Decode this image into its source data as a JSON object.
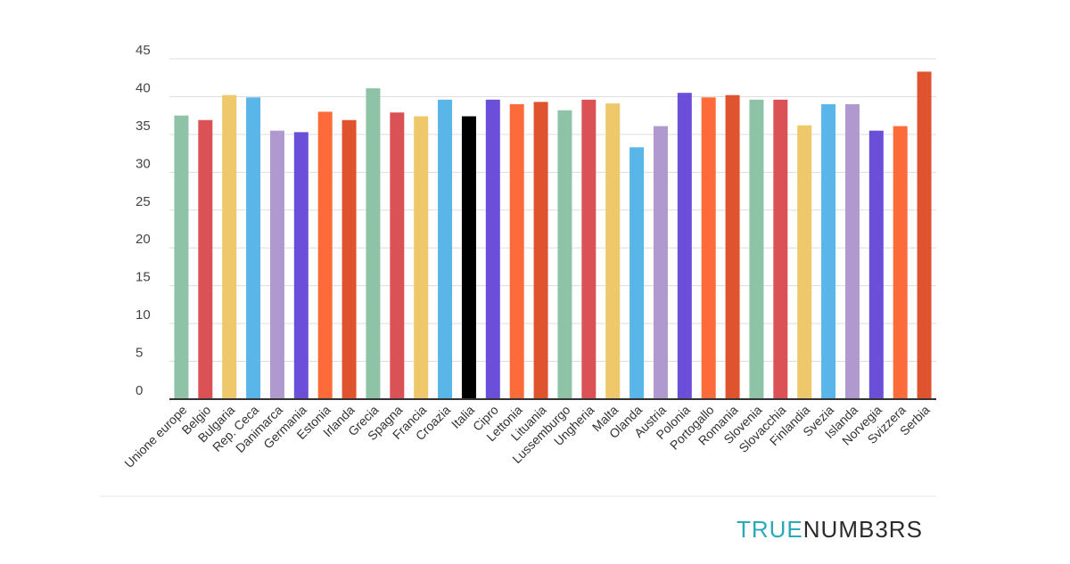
{
  "chart_data": {
    "type": "bar",
    "title": "",
    "xlabel": "",
    "ylabel": "",
    "ylim": [
      0,
      45
    ],
    "yticks": [
      0,
      5,
      10,
      15,
      20,
      25,
      30,
      35,
      40,
      45
    ],
    "grid": true,
    "legend": "none",
    "categories": [
      "Unione europe",
      "Belgio",
      "Bulgaria",
      "Rep. Ceca",
      "Danimarca",
      "Germania",
      "Estonia",
      "Irlanda",
      "Grecia",
      "Spagna",
      "Francia",
      "Croazia",
      "Italia",
      "Cipro",
      "Lettonia",
      "Lituania",
      "Lussemburgo",
      "Ungheria",
      "Malta",
      "Olanda",
      "Austria",
      "Polonia",
      "Portogallo",
      "Romania",
      "Slovenia",
      "Slovacchia",
      "Finlandia",
      "Svezia",
      "Islanda",
      "Norvegia",
      "Svizzera",
      "Serbia"
    ],
    "values": [
      37.5,
      36.9,
      40.2,
      39.9,
      35.5,
      35.3,
      38.0,
      36.9,
      41.1,
      37.9,
      37.4,
      39.6,
      37.4,
      39.6,
      39.0,
      39.3,
      38.2,
      39.6,
      39.1,
      33.3,
      36.1,
      40.5,
      39.9,
      40.2,
      39.6,
      39.6,
      36.2,
      39.0,
      39.0,
      35.5,
      36.1,
      43.3
    ],
    "colors": [
      "#8fc3a8",
      "#db5256",
      "#efc86c",
      "#5ab5e8",
      "#b099cf",
      "#6b4fd8",
      "#fd6b3b",
      "#e0532f",
      "#8fc3a8",
      "#db5256",
      "#efc86c",
      "#5ab5e8",
      "#000000",
      "#6b4fd8",
      "#fd6b3b",
      "#e0532f",
      "#8fc3a8",
      "#db5256",
      "#efc86c",
      "#5ab5e8",
      "#b099cf",
      "#6b4fd8",
      "#fd6b3b",
      "#e0532f",
      "#8fc3a8",
      "#db5256",
      "#efc86c",
      "#5ab5e8",
      "#b099cf",
      "#6b4fd8",
      "#fd6b3b",
      "#e0532f"
    ]
  },
  "brand": {
    "part1": "TRUE",
    "part2": "NUMB3RS"
  }
}
